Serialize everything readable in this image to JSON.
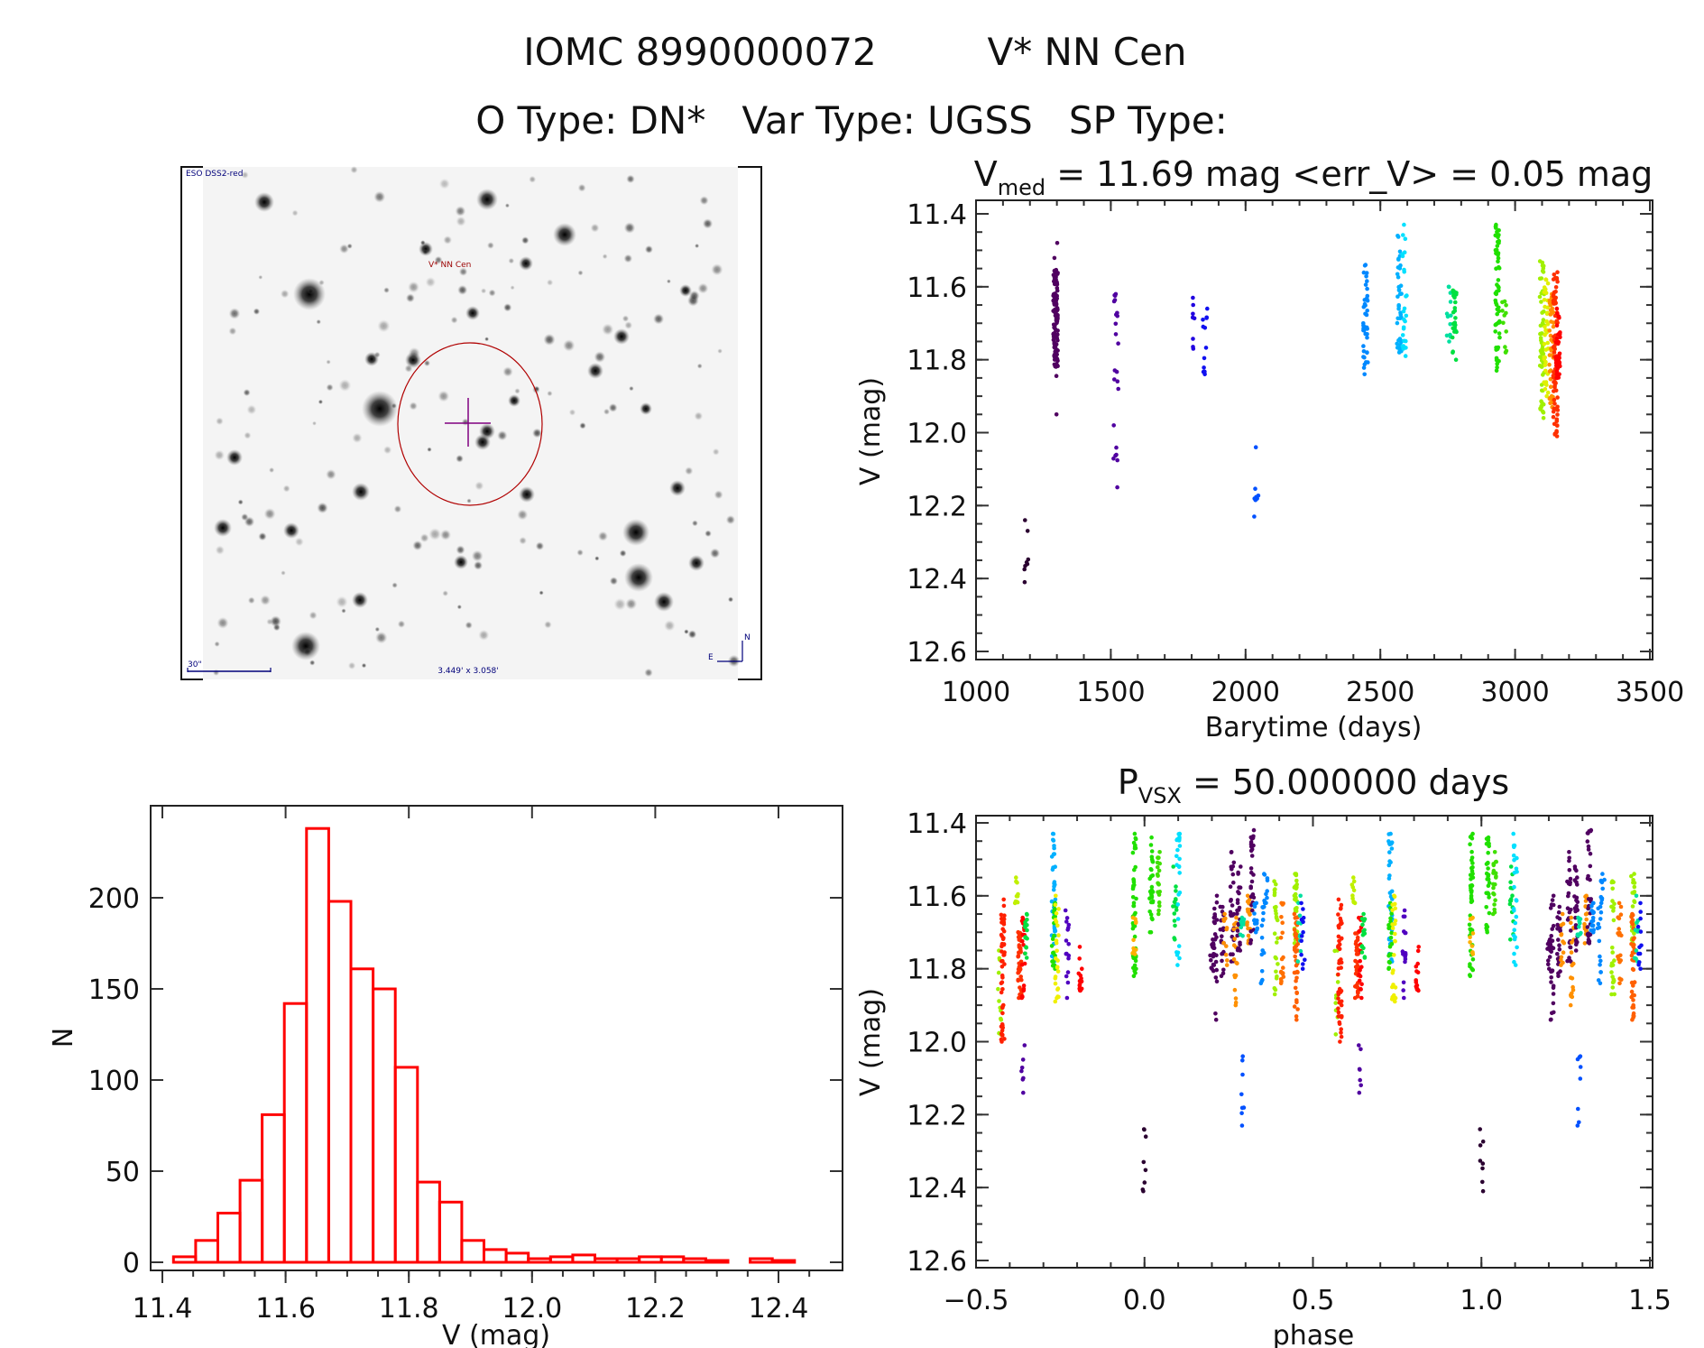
{
  "header": {
    "line1_id": "IOMC 8990000072",
    "line1_name": "V* NN Cen",
    "line2": "O Type: DN*   Var Type: UGSS   SP Type:"
  },
  "finder": {
    "survey_label": "ESO DSS2-red",
    "target_label": "V* NN Cen",
    "scale_label": "30\"",
    "fov_label": "3.449' x 3.058'",
    "north_label": "N",
    "east_label": "E",
    "circle_color": "#b00000",
    "cross_color": "#800080"
  },
  "chart_data": [
    {
      "id": "lightcurve",
      "type": "scatter",
      "title_main": "V",
      "title_sub": "med",
      "title_rest": " = 11.69 mag <err_V> = 0.05 mag",
      "xlabel": "Barytime (days)",
      "ylabel": "V (mag)",
      "xlim": [
        1000,
        3500
      ],
      "ylim": [
        12.6,
        11.4
      ],
      "y_inverted": true,
      "xticks": [
        1000,
        1500,
        2000,
        2500,
        3000,
        3500
      ],
      "xtick_labels": [
        "1000",
        "1500",
        "2000",
        "2500",
        "3000",
        "3500"
      ],
      "yticks": [
        11.4,
        11.6,
        11.8,
        12.0,
        12.2,
        12.4,
        12.6
      ],
      "ytick_labels": [
        "11.4",
        "11.6",
        "11.8",
        "12.0",
        "12.2",
        "12.4",
        "12.6"
      ],
      "groups": [
        {
          "x": 1185,
          "ymin": 12.24,
          "ymax": 12.41,
          "n": 8,
          "color": "#2a0030"
        },
        {
          "x": 1295,
          "ymin": 11.48,
          "ymax": 11.95,
          "n": 120,
          "dense": [
            11.55,
            11.82
          ],
          "color": "#500060"
        },
        {
          "x": 1520,
          "ymin": 11.62,
          "ymax": 11.88,
          "n": 16,
          "color": "#5000a0"
        },
        {
          "x": 1518,
          "ymin": 11.98,
          "ymax": 12.15,
          "n": 7,
          "color": "#5000a0"
        },
        {
          "x": 1805,
          "ymin": 11.63,
          "ymax": 11.77,
          "n": 8,
          "color": "#2000e0"
        },
        {
          "x": 1850,
          "ymin": 11.66,
          "ymax": 11.84,
          "n": 12,
          "color": "#1010f0"
        },
        {
          "x": 2040,
          "ymin": 12.04,
          "ymax": 12.23,
          "n": 8,
          "color": "#0050ff"
        },
        {
          "x": 2445,
          "ymin": 11.54,
          "ymax": 11.84,
          "n": 40,
          "color": "#0088ff"
        },
        {
          "x": 2570,
          "ymin": 11.46,
          "ymax": 11.78,
          "n": 40,
          "color": "#00b0ff"
        },
        {
          "x": 2590,
          "ymin": 11.43,
          "ymax": 11.79,
          "n": 25,
          "color": "#00e0ff"
        },
        {
          "x": 2755,
          "ymin": 11.6,
          "ymax": 11.75,
          "n": 12,
          "color": "#00e0a0"
        },
        {
          "x": 2775,
          "ymin": 11.61,
          "ymax": 11.8,
          "n": 25,
          "color": "#00e040"
        },
        {
          "x": 2935,
          "ymin": 11.43,
          "ymax": 11.83,
          "n": 60,
          "color": "#20e000"
        },
        {
          "x": 2960,
          "ymin": 11.64,
          "ymax": 11.78,
          "n": 12,
          "color": "#40e000"
        },
        {
          "x": 3100,
          "ymin": 11.53,
          "ymax": 11.96,
          "n": 60,
          "color": "#a0f000"
        },
        {
          "x": 3115,
          "ymin": 11.58,
          "ymax": 11.9,
          "n": 40,
          "color": "#e0f000"
        },
        {
          "x": 3135,
          "ymin": 11.62,
          "ymax": 11.93,
          "n": 40,
          "color": "#ff9000"
        },
        {
          "x": 3150,
          "ymin": 11.56,
          "ymax": 12.01,
          "n": 80,
          "color": "#ff3000"
        },
        {
          "x": 3160,
          "ymin": 11.66,
          "ymax": 11.85,
          "n": 40,
          "color": "#ff0000"
        }
      ]
    },
    {
      "id": "histogram",
      "type": "bar",
      "title": "",
      "xlabel": "V (mag)",
      "ylabel": "N",
      "xlim": [
        11.38,
        12.49
      ],
      "ylim": [
        0,
        250
      ],
      "xticks": [
        11.4,
        11.6,
        11.8,
        12.0,
        12.2,
        12.4
      ],
      "xtick_labels": [
        "11.4",
        "11.6",
        "11.8",
        "12.0",
        "12.2",
        "12.4"
      ],
      "yticks": [
        0,
        50,
        100,
        150,
        200
      ],
      "ytick_labels": [
        "0",
        "50",
        "100",
        "150",
        "200"
      ],
      "bin_start": 11.418,
      "bin_width": 0.036,
      "values": [
        3,
        12,
        27,
        45,
        81,
        142,
        238,
        198,
        161,
        150,
        107,
        44,
        33,
        12,
        7,
        5,
        2,
        3,
        4,
        2,
        2,
        3,
        3,
        2,
        1,
        0,
        2,
        1
      ]
    },
    {
      "id": "phased",
      "type": "scatter",
      "title_main": "P",
      "title_sub": "VSX",
      "title_rest": " = 50.000000 days",
      "xlabel": "phase",
      "ylabel": "V (mag)",
      "xlim": [
        -0.5,
        1.5
      ],
      "ylim": [
        12.6,
        11.4
      ],
      "y_inverted": true,
      "xticks": [
        -0.5,
        0.0,
        0.5,
        1.0,
        1.5
      ],
      "xtick_labels": [
        "−0.5",
        "0.0",
        "0.5",
        "1.0",
        "1.5"
      ],
      "yticks": [
        11.4,
        11.6,
        11.8,
        12.0,
        12.2,
        12.4,
        12.6
      ],
      "ytick_labels": [
        "11.4",
        "11.6",
        "11.8",
        "12.0",
        "12.2",
        "12.4",
        "12.6"
      ],
      "period_days": 50.0,
      "groups": [
        {
          "x": -0.43,
          "ymin": 11.75,
          "ymax": 11.98,
          "n": 12,
          "color": "#a0f000"
        },
        {
          "x": -0.42,
          "ymin": 11.61,
          "ymax": 12.0,
          "n": 50,
          "color": "#ff2000"
        },
        {
          "x": -0.38,
          "ymin": 11.55,
          "ymax": 11.62,
          "n": 10,
          "color": "#c0f000"
        },
        {
          "x": -0.37,
          "ymin": 11.7,
          "ymax": 11.88,
          "n": 40,
          "color": "#ff3000"
        },
        {
          "x": -0.36,
          "ymin": 12.01,
          "ymax": 12.14,
          "n": 7,
          "color": "#5000a0"
        },
        {
          "x": -0.36,
          "ymin": 11.66,
          "ymax": 11.88,
          "n": 20,
          "color": "#ff0000"
        },
        {
          "x": -0.35,
          "ymin": 11.65,
          "ymax": 11.77,
          "n": 15,
          "color": "#00e040"
        },
        {
          "x": -0.27,
          "ymin": 11.43,
          "ymax": 11.78,
          "n": 35,
          "color": "#00b0ff"
        },
        {
          "x": -0.27,
          "ymin": 11.62,
          "ymax": 11.8,
          "n": 20,
          "color": "#20e000"
        },
        {
          "x": -0.26,
          "ymin": 11.6,
          "ymax": 11.89,
          "n": 25,
          "color": "#f0f000"
        },
        {
          "x": -0.23,
          "ymin": 11.64,
          "ymax": 11.88,
          "n": 16,
          "color": "#5000c0"
        },
        {
          "x": -0.19,
          "ymin": 11.74,
          "ymax": 11.86,
          "n": 15,
          "color": "#ff0000"
        },
        {
          "x": -0.03,
          "ymin": 11.43,
          "ymax": 11.82,
          "n": 50,
          "color": "#20e000"
        },
        {
          "x": -0.03,
          "ymin": 11.66,
          "ymax": 11.76,
          "n": 10,
          "color": "#ffb000"
        },
        {
          "x": 0.0,
          "ymin": 12.24,
          "ymax": 12.41,
          "n": 8,
          "color": "#2a0030"
        },
        {
          "x": 0.02,
          "ymin": 11.44,
          "ymax": 11.7,
          "n": 30,
          "color": "#20e000"
        },
        {
          "x": 0.04,
          "ymin": 11.48,
          "ymax": 11.65,
          "n": 20,
          "color": "#40e000"
        },
        {
          "x": 0.09,
          "ymin": 11.52,
          "ymax": 11.72,
          "n": 15,
          "color": "#00e040"
        },
        {
          "x": 0.1,
          "ymin": 11.43,
          "ymax": 11.79,
          "n": 25,
          "color": "#00e0ff"
        },
        {
          "x": 0.2,
          "ymin": 11.72,
          "ymax": 11.8,
          "n": 12,
          "color": "#500060"
        },
        {
          "x": 0.21,
          "ymin": 11.6,
          "ymax": 11.94,
          "n": 25,
          "color": "#500060"
        },
        {
          "x": 0.23,
          "ymin": 11.63,
          "ymax": 11.82,
          "n": 20,
          "color": "#500060"
        },
        {
          "x": 0.24,
          "ymin": 11.65,
          "ymax": 11.79,
          "n": 12,
          "color": "#ff9000"
        },
        {
          "x": 0.26,
          "ymin": 11.48,
          "ymax": 11.78,
          "n": 25,
          "color": "#500060"
        },
        {
          "x": 0.27,
          "ymin": 11.66,
          "ymax": 11.9,
          "n": 18,
          "color": "#ff9000"
        },
        {
          "x": 0.28,
          "ymin": 11.52,
          "ymax": 11.75,
          "n": 25,
          "color": "#500060"
        },
        {
          "x": 0.29,
          "ymin": 12.04,
          "ymax": 12.23,
          "n": 8,
          "color": "#0050ff"
        },
        {
          "x": 0.29,
          "ymin": 11.66,
          "ymax": 11.71,
          "n": 10,
          "color": "#00e0a0"
        },
        {
          "x": 0.31,
          "ymin": 11.6,
          "ymax": 11.73,
          "n": 20,
          "color": "#ff9000"
        },
        {
          "x": 0.32,
          "ymin": 11.42,
          "ymax": 11.73,
          "n": 30,
          "color": "#500060"
        },
        {
          "x": 0.33,
          "ymin": 11.62,
          "ymax": 11.7,
          "n": 15,
          "color": "#0088ff"
        },
        {
          "x": 0.35,
          "ymin": 11.63,
          "ymax": 11.84,
          "n": 15,
          "color": "#0088ff"
        },
        {
          "x": 0.36,
          "ymin": 11.54,
          "ymax": 11.62,
          "n": 10,
          "color": "#0088ff"
        },
        {
          "x": 0.39,
          "ymin": 11.56,
          "ymax": 11.87,
          "n": 25,
          "color": "#a0f000"
        },
        {
          "x": 0.41,
          "ymin": 11.62,
          "ymax": 11.84,
          "n": 18,
          "color": "#ff7000"
        },
        {
          "x": 0.45,
          "ymin": 11.54,
          "ymax": 11.73,
          "n": 25,
          "color": "#a0f000"
        },
        {
          "x": 0.45,
          "ymin": 11.65,
          "ymax": 11.94,
          "n": 40,
          "color": "#ff6000"
        },
        {
          "x": 0.46,
          "ymin": 11.6,
          "ymax": 11.78,
          "n": 10,
          "color": "#00e0a0"
        },
        {
          "x": 0.47,
          "ymin": 11.62,
          "ymax": 11.8,
          "n": 12,
          "color": "#1010f0"
        }
      ],
      "repeat_offset": 1.0
    }
  ]
}
